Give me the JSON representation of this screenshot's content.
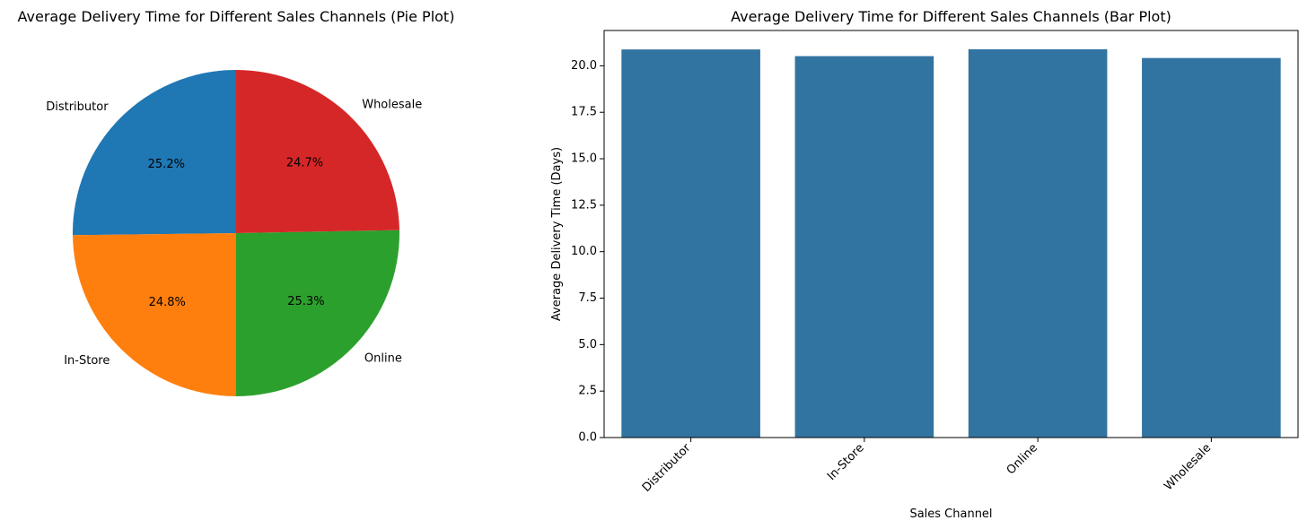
{
  "chart_data": [
    {
      "type": "pie",
      "title": "Average Delivery Time for Different Sales Channels (Pie Plot)",
      "slices": [
        {
          "label": "Distributor",
          "value": 25.2,
          "pct_label": "25.2%",
          "color": "#1f77b4"
        },
        {
          "label": "In-Store",
          "value": 24.8,
          "pct_label": "24.8%",
          "color": "#ff7f0e"
        },
        {
          "label": "Online",
          "value": 25.3,
          "pct_label": "25.3%",
          "color": "#2ca02c"
        },
        {
          "label": "Wholesale",
          "value": 24.7,
          "pct_label": "24.7%",
          "color": "#d62728"
        }
      ],
      "start_angle_deg": 90,
      "direction": "counterclockwise"
    },
    {
      "type": "bar",
      "title": "Average Delivery Time for Different Sales Channels (Bar Plot)",
      "xlabel": "Sales Channel",
      "ylabel": "Average Delivery Time (Days)",
      "categories": [
        "Distributor",
        "In-Store",
        "Online",
        "Wholesale"
      ],
      "values": [
        20.88,
        20.52,
        20.89,
        20.42
      ],
      "ylim": [
        0,
        21.9
      ],
      "yticks": [
        "0.0",
        "2.5",
        "5.0",
        "7.5",
        "10.0",
        "12.5",
        "15.0",
        "17.5",
        "20.0"
      ],
      "bar_color": "#3274a1",
      "grid": false,
      "xtick_rotation_deg": 45
    }
  ]
}
